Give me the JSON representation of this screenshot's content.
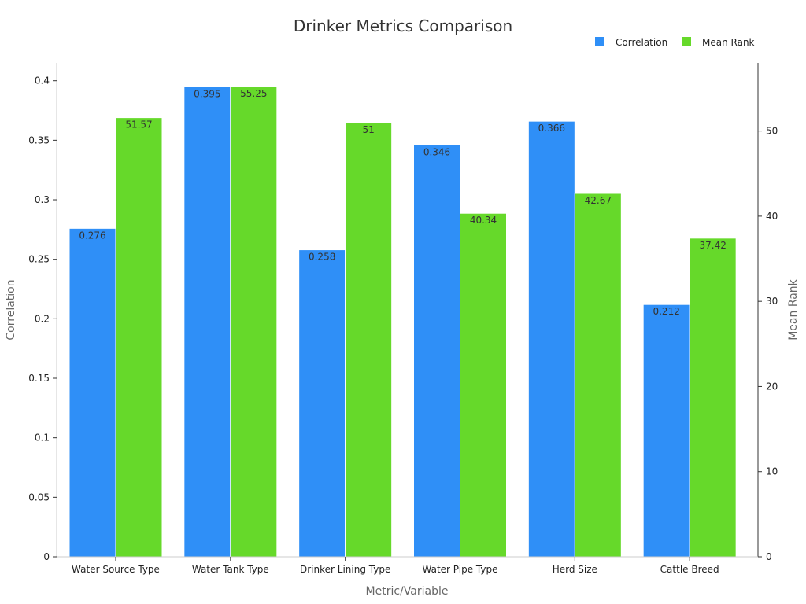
{
  "chart_data": {
    "type": "bar",
    "title": "Drinker Metrics Comparison",
    "xlabel": "Metric/Variable",
    "ylabel_left": "Correlation",
    "ylabel_right": "Mean Rank",
    "categories": [
      "Water Source Type",
      "Water Tank Type",
      "Drinker Lining Type",
      "Water Pipe Type",
      "Herd Size",
      "Cattle Breed"
    ],
    "series": [
      {
        "name": "Correlation",
        "axis": "left",
        "color": "#2f8ff7",
        "values": [
          0.276,
          0.395,
          0.258,
          0.346,
          0.366,
          0.212
        ],
        "labels": [
          "0.276",
          "0.395",
          "0.258",
          "0.346",
          "0.366",
          "0.212"
        ]
      },
      {
        "name": "Mean Rank",
        "axis": "right",
        "color": "#66d92a",
        "values": [
          51.57,
          55.25,
          51,
          40.34,
          42.67,
          37.42
        ],
        "labels": [
          "51.57",
          "55.25",
          "51",
          "40.34",
          "42.67",
          "37.42"
        ]
      }
    ],
    "ylim_left": [
      0,
      0.415
    ],
    "ylim_right": [
      0,
      58
    ],
    "yticks_left": [
      "0",
      "0.05",
      "0.1",
      "0.15",
      "0.2",
      "0.25",
      "0.3",
      "0.35",
      "0.4"
    ],
    "yticks_right": [
      "0",
      "10",
      "20",
      "30",
      "40",
      "50"
    ],
    "legend_position": "top-right",
    "grid": false
  }
}
